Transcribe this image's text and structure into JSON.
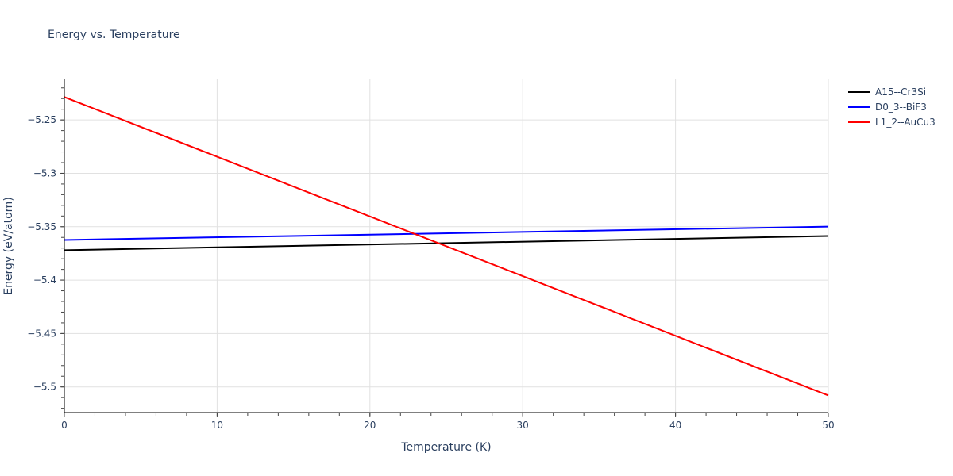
{
  "chart_data": {
    "type": "line",
    "title": "Energy vs. Temperature",
    "xlabel": "Temperature (K)",
    "ylabel": "Energy (eV/atom)",
    "xlim": [
      0,
      50
    ],
    "ylim": [
      -5.524,
      -5.212
    ],
    "x_ticks": [
      0,
      10,
      20,
      30,
      40,
      50
    ],
    "x_tick_labels": [
      "0",
      "10",
      "20",
      "30",
      "40",
      "50"
    ],
    "y_ticks": [
      -5.25,
      -5.3,
      -5.35,
      -5.4,
      -5.45,
      -5.5
    ],
    "y_tick_labels": [
      "−5.25",
      "−5.3",
      "−5.35",
      "−5.4",
      "−5.45",
      "−5.5"
    ],
    "grid": true,
    "legend_position": "right-top",
    "series": [
      {
        "name": "A15--Cr3Si",
        "color": "#000000",
        "x": [
          0,
          50
        ],
        "y": [
          -5.372,
          -5.3587
        ]
      },
      {
        "name": "D0_3--BiF3",
        "color": "#0000ff",
        "x": [
          0,
          50
        ],
        "y": [
          -5.3624,
          -5.3499
        ]
      },
      {
        "name": "L1_2--AuCu3",
        "color": "#ff0000",
        "x": [
          0,
          50
        ],
        "y": [
          -5.2286,
          -5.508
        ]
      }
    ]
  }
}
